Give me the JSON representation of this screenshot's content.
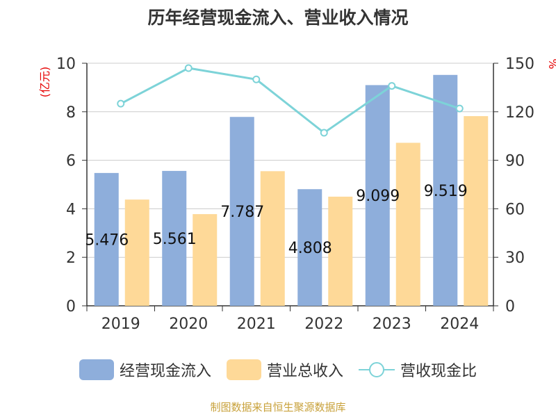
{
  "title": "历年经营现金流入、营业收入情况",
  "left_axis_unit": "(亿元)",
  "right_axis_unit": "%",
  "source": "制图数据来自恒生聚源数据库",
  "colors": {
    "bar1": "#8eaedb",
    "bar2": "#fed998",
    "line": "#7dd3d8",
    "unit": "#e60000"
  },
  "chart_data": {
    "type": "bar",
    "categories": [
      "2019",
      "2020",
      "2021",
      "2022",
      "2023",
      "2024"
    ],
    "series": [
      {
        "name": "经营现金流入",
        "type": "bar",
        "axis": "left",
        "values": [
          5.476,
          5.561,
          7.787,
          4.808,
          9.099,
          9.519
        ],
        "labels": [
          "5.476",
          "5.561",
          "7.787",
          "4.808",
          "9.099",
          "9.519"
        ]
      },
      {
        "name": "营业总收入",
        "type": "bar",
        "axis": "left",
        "values": [
          4.38,
          3.78,
          5.55,
          4.5,
          6.72,
          7.82
        ]
      },
      {
        "name": "营收现金比",
        "type": "line",
        "axis": "right",
        "values": [
          125,
          147,
          140,
          107,
          136,
          122
        ]
      }
    ],
    "ylim_left": [
      0,
      10
    ],
    "yticks_left": [
      "0",
      "2",
      "4",
      "6",
      "8",
      "10"
    ],
    "ylim_right": [
      0,
      150
    ],
    "yticks_right": [
      "0",
      "30",
      "60",
      "90",
      "120",
      "150"
    ],
    "grid": true,
    "legend": "bottom"
  }
}
